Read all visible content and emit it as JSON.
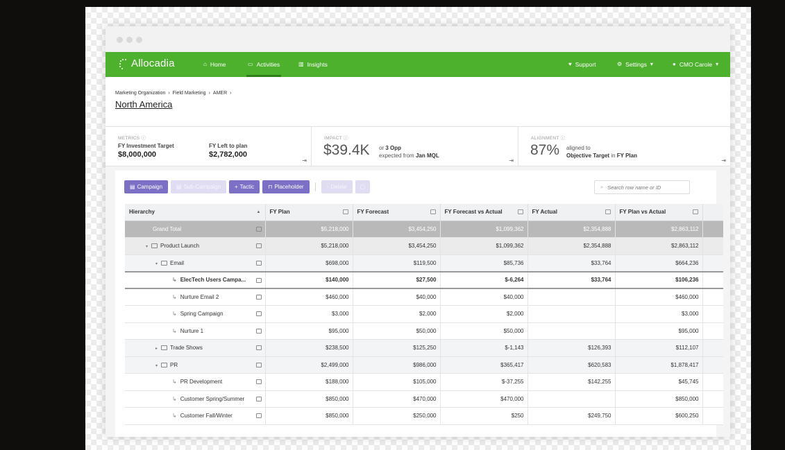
{
  "brand": {
    "name": "Allocadia",
    "color": "#4db12d"
  },
  "nav": {
    "home": "Home",
    "activities": "Activities",
    "insights": "Insights",
    "support": "Support",
    "settings": "Settings",
    "user": "CMO Carole"
  },
  "breadcrumb": [
    "Marketing Organization",
    "Field Marketing",
    "AMER"
  ],
  "page_title": "North America",
  "metrics": {
    "head": "METRICS",
    "investment_label": "FY Investment Target",
    "investment_value": "$8,000,000",
    "left_label": "FY Left to plan",
    "left_value": "$2,782,000"
  },
  "impact": {
    "head": "IMPACT",
    "value": "$39.4K",
    "or_text": "or",
    "opp": "3 Opp",
    "expected_text": "expected from",
    "source": "Jan MQL"
  },
  "alignment": {
    "head": "ALIGNMENT",
    "value": "87%",
    "aligned_text": "aligned to",
    "target": "Objective Target",
    "in_text": "in",
    "plan": "FY Plan"
  },
  "toolbar": {
    "campaign": "Campaign",
    "sub_campaign": "Sub-Campaign",
    "tactic": "Tactic",
    "placeholder": "Placeholder",
    "delete": "Delete",
    "search_placeholder": "Search row name or ID"
  },
  "columns": [
    "Hierarchy",
    "FY Plan",
    "FY Forecast",
    "FY Forecast vs Actual",
    "FY Actual",
    "FY Plan vs Actual"
  ],
  "rows": [
    {
      "name": "Grand Total",
      "level": "grand",
      "values": [
        "$5,218,000",
        "$3,454,250",
        "$1,099,362",
        "$2,354,888",
        "$2,863,112"
      ]
    },
    {
      "name": "Product Launch",
      "level": "l1",
      "values": [
        "$5,218,000",
        "$3,454,250",
        "$1,099,362",
        "$2,354,888",
        "$2,863,112"
      ]
    },
    {
      "name": "Email",
      "level": "l2",
      "values": [
        "$698,000",
        "$119,500",
        "$85,736",
        "$33,764",
        "$664,236"
      ]
    },
    {
      "name": "ElecTech Users Campa...",
      "level": "leaf-sel",
      "values": [
        "$140,000",
        "$27,500",
        "$-6,264",
        "$33,764",
        "$106,236"
      ]
    },
    {
      "name": "Nurture Email 2",
      "level": "leaf",
      "values": [
        "$460,000",
        "$40,000",
        "$40,000",
        "",
        "$460,000"
      ]
    },
    {
      "name": "Spring Campaign",
      "level": "leaf",
      "values": [
        "$3,000",
        "$2,000",
        "$2,000",
        "",
        "$3,000"
      ]
    },
    {
      "name": "Nurture 1",
      "level": "leaf",
      "values": [
        "$95,000",
        "$50,000",
        "$50,000",
        "",
        "$95,000"
      ]
    },
    {
      "name": "Trade Shows",
      "level": "l2c",
      "values": [
        "$238,500",
        "$125,250",
        "$-1,143",
        "$126,393",
        "$112,107"
      ]
    },
    {
      "name": "PR",
      "level": "l2",
      "values": [
        "$2,499,000",
        "$986,000",
        "$365,417",
        "$620,583",
        "$1,878,417"
      ]
    },
    {
      "name": "PR Development",
      "level": "leaf",
      "values": [
        "$188,000",
        "$105,000",
        "$-37,255",
        "$142,255",
        "$45,745"
      ]
    },
    {
      "name": "Customer Spring/Summer",
      "level": "leaf",
      "values": [
        "$850,000",
        "$470,000",
        "$470,000",
        "",
        "$850,000"
      ]
    },
    {
      "name": "Customer Fall/Winter",
      "level": "leaf",
      "values": [
        "$850,000",
        "$250,000",
        "$250",
        "$249,750",
        "$600,250"
      ]
    }
  ]
}
